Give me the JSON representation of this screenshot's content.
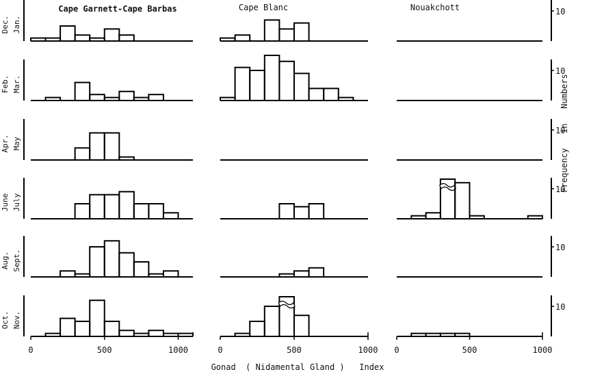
{
  "chart_data": {
    "type": "bar",
    "subtype": "histogram-panel-grid",
    "xlabel": "Gonad  ( Nidamental Gland )   Index",
    "ylabel": "Frequency   in   Numbers",
    "x_ticks": [
      "0",
      "500",
      "1000"
    ],
    "x_tick_values": [
      0,
      500,
      1000
    ],
    "y_tick_label": "10",
    "y_tick_value": 10,
    "bin_width": 100,
    "columns": [
      {
        "key": "cgcb",
        "title": "Cape Garnett-Cape Barbas",
        "xlim": [
          0,
          1100
        ]
      },
      {
        "key": "cb",
        "title": "Cape Blanc",
        "xlim": [
          0,
          1000
        ]
      },
      {
        "key": "nk",
        "title": "Nouakchott",
        "xlim": [
          0,
          1000
        ]
      }
    ],
    "rows": [
      {
        "period": [
          "Dec.",
          "Jan."
        ],
        "series": {
          "cgcb": {
            "bins": [
              [
                0,
                100,
                1
              ],
              [
                100,
                200,
                1
              ],
              [
                200,
                300,
                5
              ],
              [
                300,
                400,
                2
              ],
              [
                400,
                500,
                1
              ],
              [
                500,
                600,
                4
              ],
              [
                600,
                700,
                2
              ]
            ]
          },
          "cb": {
            "bins": [
              [
                0,
                100,
                1
              ],
              [
                100,
                200,
                2
              ],
              [
                300,
                400,
                7
              ],
              [
                400,
                500,
                4
              ],
              [
                500,
                600,
                6
              ]
            ]
          },
          "nk": {
            "bins": []
          }
        }
      },
      {
        "period": [
          "Feb.",
          "Mar."
        ],
        "series": {
          "cgcb": {
            "bins": [
              [
                100,
                200,
                1
              ],
              [
                300,
                400,
                6
              ],
              [
                400,
                500,
                2
              ],
              [
                500,
                600,
                1
              ],
              [
                600,
                700,
                3
              ],
              [
                700,
                800,
                1
              ],
              [
                800,
                900,
                2
              ]
            ]
          },
          "cb": {
            "bins": [
              [
                0,
                100,
                1
              ],
              [
                100,
                200,
                11
              ],
              [
                200,
                300,
                10
              ],
              [
                300,
                400,
                15
              ],
              [
                400,
                500,
                13
              ],
              [
                500,
                600,
                9
              ],
              [
                600,
                700,
                4
              ],
              [
                700,
                800,
                4
              ],
              [
                800,
                900,
                1
              ]
            ]
          },
          "nk": {
            "bins": []
          }
        }
      },
      {
        "period": [
          "Apr.",
          "May"
        ],
        "series": {
          "cgcb": {
            "bins": [
              [
                300,
                400,
                4
              ],
              [
                400,
                500,
                9
              ],
              [
                500,
                600,
                9
              ],
              [
                600,
                700,
                1
              ]
            ]
          },
          "cb": {
            "bins": []
          },
          "nk": {
            "bins": []
          }
        }
      },
      {
        "period": [
          "June",
          "July"
        ],
        "series": {
          "cgcb": {
            "bins": [
              [
                300,
                400,
                5
              ],
              [
                400,
                500,
                8
              ],
              [
                500,
                600,
                8
              ],
              [
                600,
                700,
                9
              ],
              [
                700,
                800,
                5
              ],
              [
                800,
                900,
                5
              ],
              [
                900,
                1000,
                2
              ]
            ]
          },
          "cb": {
            "bins": [
              [
                400,
                500,
                5
              ],
              [
                500,
                600,
                4
              ],
              [
                600,
                700,
                5
              ]
            ]
          },
          "nk": {
            "bins": [
              [
                100,
                200,
                1
              ],
              [
                200,
                300,
                2
              ],
              [
                300,
                400,
                18
              ],
              [
                400,
                500,
                12
              ],
              [
                500,
                600,
                1
              ],
              [
                900,
                1000,
                1
              ]
            ],
            "broken_bins": [
              300
            ]
          }
        }
      },
      {
        "period": [
          "Aug.",
          "Sept."
        ],
        "series": {
          "cgcb": {
            "bins": [
              [
                200,
                300,
                2
              ],
              [
                300,
                400,
                1
              ],
              [
                400,
                500,
                10
              ],
              [
                500,
                600,
                12
              ],
              [
                600,
                700,
                8
              ],
              [
                700,
                800,
                5
              ],
              [
                800,
                900,
                1
              ],
              [
                900,
                1000,
                2
              ]
            ]
          },
          "cb": {
            "bins": [
              [
                400,
                500,
                1
              ],
              [
                500,
                600,
                2
              ],
              [
                600,
                700,
                3
              ]
            ]
          },
          "nk": {
            "bins": []
          }
        }
      },
      {
        "period": [
          "Oct.",
          "Nov."
        ],
        "series": {
          "cgcb": {
            "bins": [
              [
                100,
                200,
                1
              ],
              [
                200,
                300,
                6
              ],
              [
                300,
                400,
                5
              ],
              [
                400,
                500,
                12
              ],
              [
                500,
                600,
                5
              ],
              [
                600,
                700,
                2
              ],
              [
                700,
                800,
                1
              ],
              [
                800,
                900,
                2
              ],
              [
                900,
                1000,
                1
              ],
              [
                1000,
                1100,
                1
              ]
            ]
          },
          "cb": {
            "bins": [
              [
                100,
                200,
                1
              ],
              [
                200,
                300,
                5
              ],
              [
                300,
                400,
                10
              ],
              [
                400,
                500,
                14
              ],
              [
                500,
                600,
                7
              ]
            ],
            "broken_bins": [
              400
            ]
          },
          "nk": {
            "bins": [
              [
                100,
                200,
                1
              ],
              [
                200,
                300,
                1
              ],
              [
                300,
                400,
                1
              ],
              [
                400,
                500,
                1
              ]
            ]
          }
        }
      }
    ]
  }
}
